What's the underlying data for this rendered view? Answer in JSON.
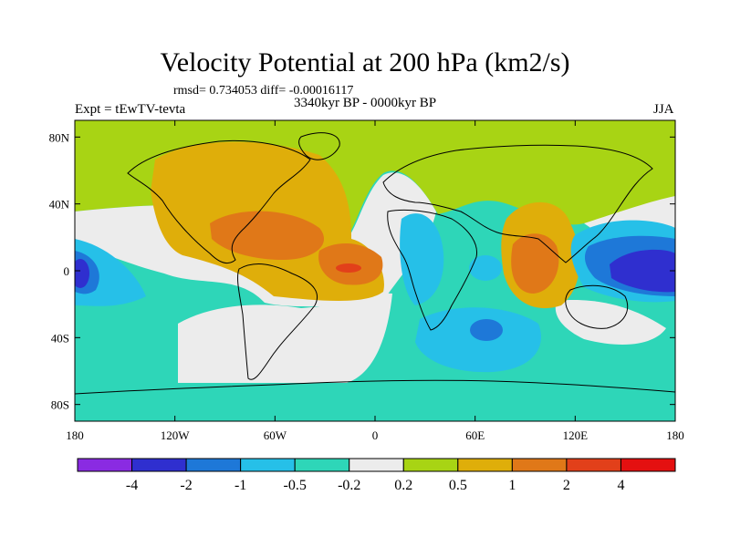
{
  "chart_data": {
    "type": "heatmap",
    "title": "Velocity Potential at 200 hPa (km2/s)",
    "stats_text": "rmsd= 0.734053 diff= -0.00016117",
    "period": "3340kyr BP - 0000kyr BP",
    "experiment": "Expt = tEwTV-tevta",
    "season": "JJA",
    "x_ticks": [
      "180",
      "120W",
      "60W",
      "0",
      "60E",
      "120E",
      "180"
    ],
    "x_values": [
      -180,
      -120,
      -60,
      0,
      60,
      120,
      180
    ],
    "y_ticks": [
      "80N",
      "40N",
      "0",
      "40S",
      "80S"
    ],
    "y_values": [
      80,
      40,
      0,
      -40,
      -80
    ],
    "xlim": [
      -180,
      180
    ],
    "ylim": [
      -90,
      90
    ],
    "colorbar": {
      "labels": [
        "-4",
        "-2",
        "-1",
        "-0.5",
        "-0.2",
        "0.2",
        "0.5",
        "1",
        "2",
        "4"
      ],
      "colors": [
        "#8a2be2",
        "#2f2fcf",
        "#1e78d8",
        "#26c0e8",
        "#2ed6b8",
        "#ececec",
        "#a8d414",
        "#dfae0a",
        "#e07818",
        "#e2401a",
        "#e41010"
      ]
    },
    "regions": [
      {
        "name": "positive-north-atlantic",
        "level": 2,
        "color": "#e07818",
        "lon": -90,
        "lat": 15
      },
      {
        "name": "positive-atlantic-max",
        "level": 4,
        "color": "#e41010",
        "lon": -15,
        "lat": 0
      },
      {
        "name": "positive-south-asia",
        "level": 2,
        "color": "#e07818",
        "lon": 100,
        "lat": 5
      },
      {
        "name": "negative-west-pacific",
        "level": -4,
        "color": "#2f2fcf",
        "lon": 160,
        "lat": 0
      },
      {
        "name": "negative-east-pacific",
        "level": -4,
        "color": "#2f2fcf",
        "lon": -175,
        "lat": 0
      },
      {
        "name": "negative-indian-ocean",
        "level": -2,
        "color": "#1e78d8",
        "lon": 60,
        "lat": -30
      }
    ]
  }
}
